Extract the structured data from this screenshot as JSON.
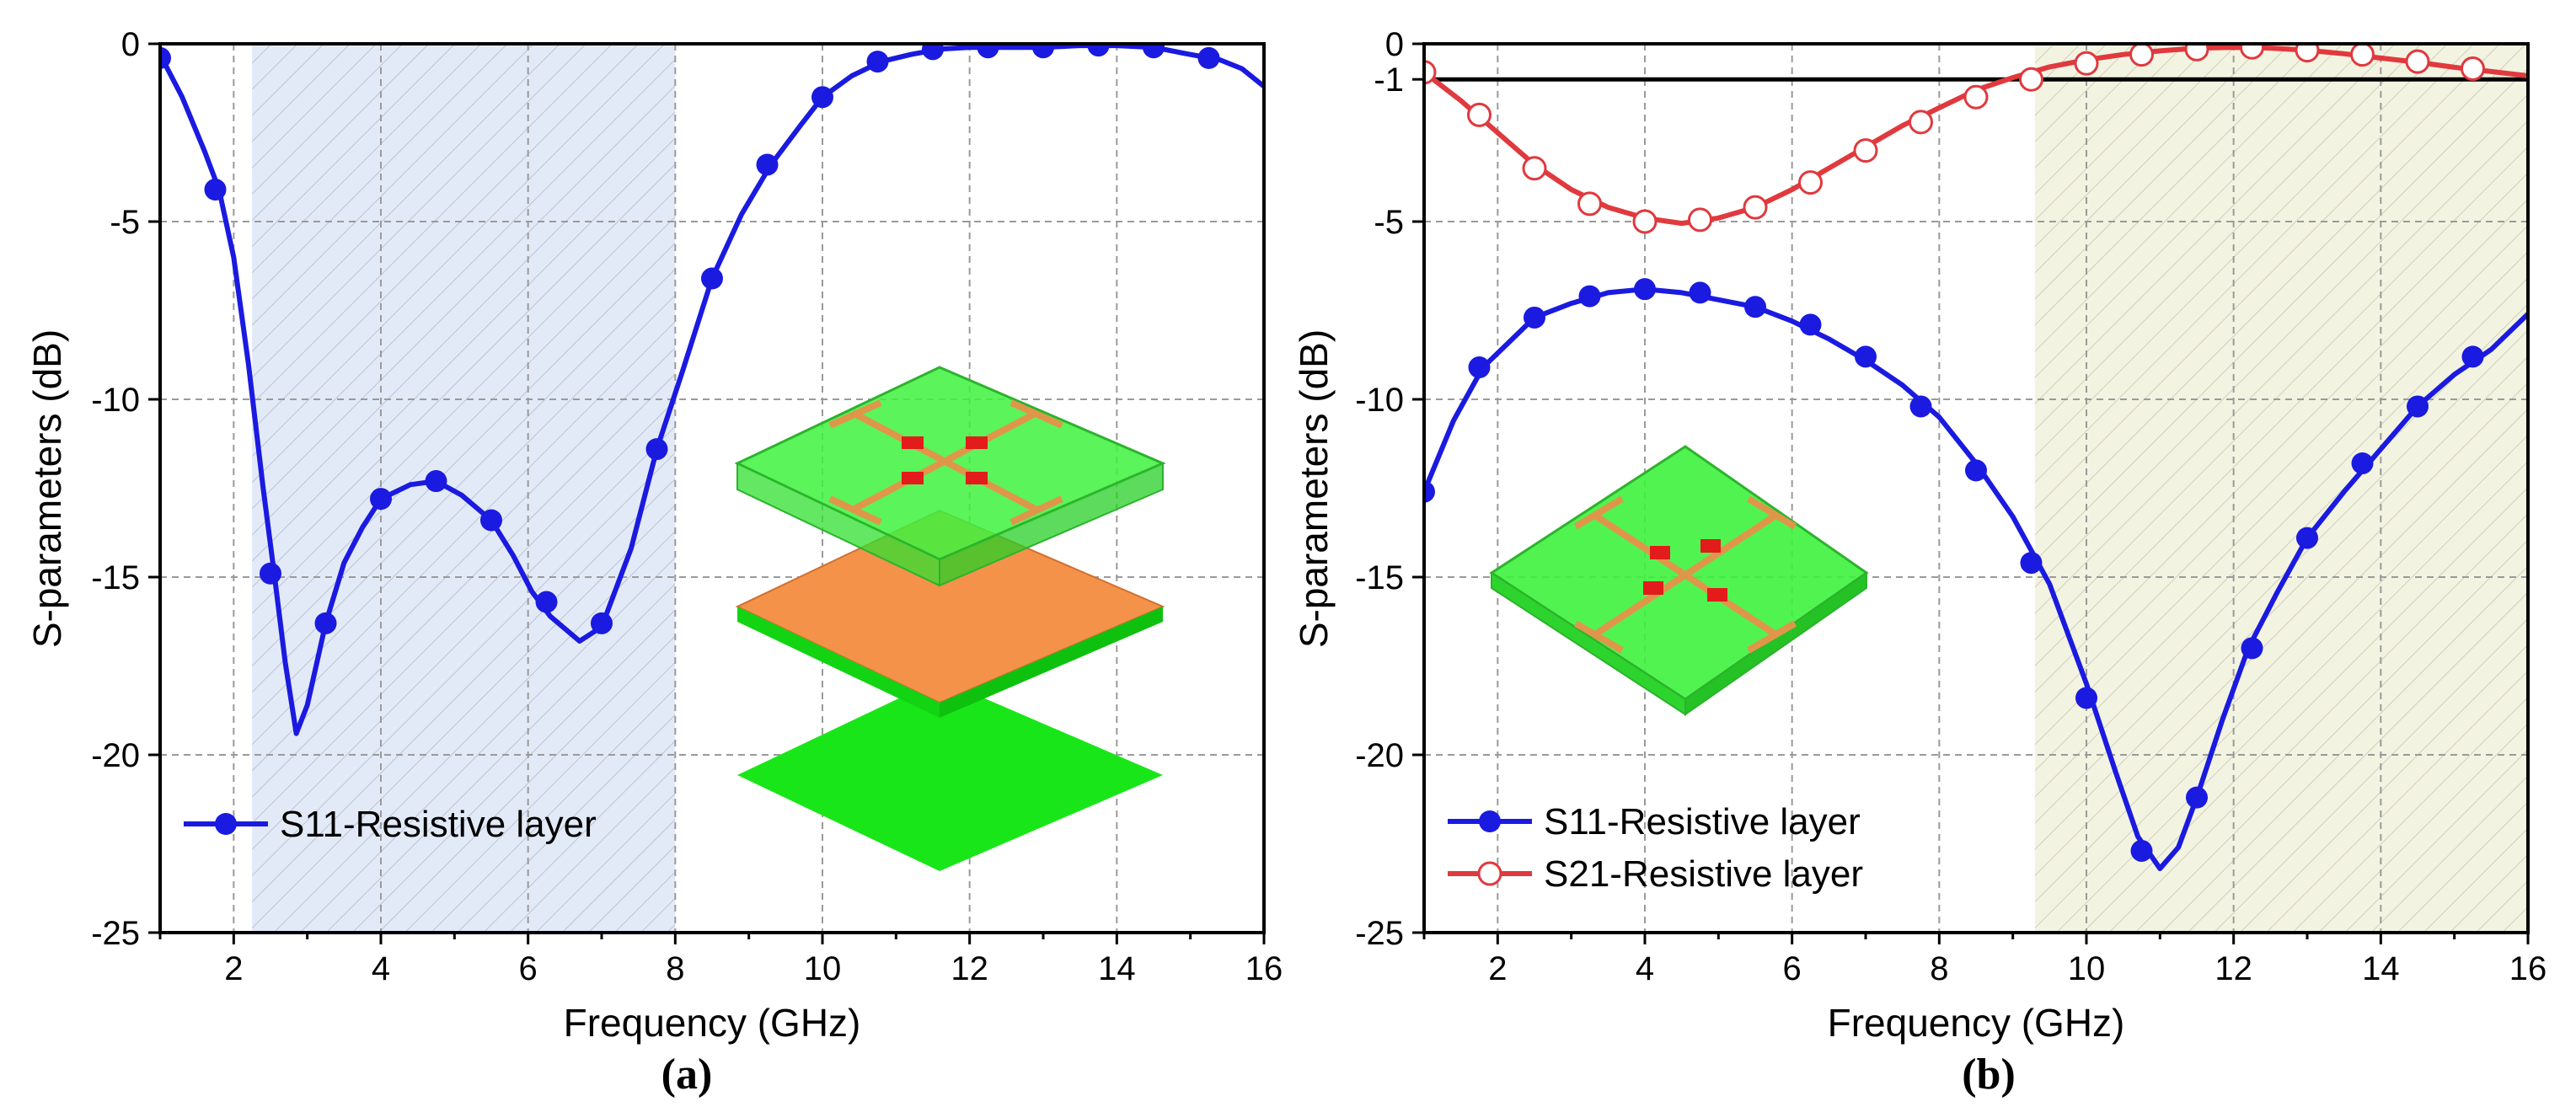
{
  "chart_data": [
    {
      "type": "line",
      "panel_label": "(a)",
      "xlabel": "Frequency (GHz)",
      "ylabel": "S-parameters (dB)",
      "xlim": [
        1,
        16
      ],
      "ylim": [
        -25,
        0
      ],
      "x_ticks": [
        "2",
        "4",
        "6",
        "8",
        "10",
        "12",
        "14",
        "16"
      ],
      "x_tick_values": [
        2,
        4,
        6,
        8,
        10,
        12,
        14,
        16
      ],
      "y_ticks": [
        "0",
        "-5",
        "-10",
        "-15",
        "-20",
        "-25"
      ],
      "y_tick_values": [
        0,
        -5,
        -10,
        -15,
        -20,
        -25
      ],
      "grid": true,
      "legend_position": "bottom-left",
      "shaded_band": {
        "x_range": [
          2.25,
          8.0
        ],
        "color": "#dde6f6",
        "hatch": "diagonal"
      },
      "inset": "exploded view: patterned FSS top layer above copper ground plane",
      "series": [
        {
          "name": "S11-Resistive layer",
          "color": "#1a1ae0",
          "marker": "filled-circle",
          "curve": [
            [
              1.0,
              -0.3
            ],
            [
              1.3,
              -1.5
            ],
            [
              1.6,
              -3.0
            ],
            [
              1.8,
              -4.1
            ],
            [
              2.0,
              -6.0
            ],
            [
              2.2,
              -9.0
            ],
            [
              2.4,
              -12.5
            ],
            [
              2.55,
              -14.9
            ],
            [
              2.7,
              -17.4
            ],
            [
              2.85,
              -19.4
            ],
            [
              3.0,
              -18.6
            ],
            [
              3.25,
              -16.3
            ],
            [
              3.5,
              -14.6
            ],
            [
              3.75,
              -13.6
            ],
            [
              4.0,
              -12.8
            ],
            [
              4.4,
              -12.4
            ],
            [
              4.75,
              -12.3
            ],
            [
              5.1,
              -12.7
            ],
            [
              5.5,
              -13.4
            ],
            [
              5.8,
              -14.4
            ],
            [
              6.05,
              -15.4
            ],
            [
              6.3,
              -16.1
            ],
            [
              6.7,
              -16.8
            ],
            [
              7.0,
              -16.4
            ],
            [
              7.4,
              -14.2
            ],
            [
              7.75,
              -11.4
            ],
            [
              8.1,
              -9.2
            ],
            [
              8.5,
              -6.6
            ],
            [
              8.9,
              -4.8
            ],
            [
              9.3,
              -3.4
            ],
            [
              9.7,
              -2.3
            ],
            [
              10.0,
              -1.5
            ],
            [
              10.4,
              -0.9
            ],
            [
              10.8,
              -0.5
            ],
            [
              11.2,
              -0.3
            ],
            [
              11.6,
              -0.15
            ],
            [
              12.0,
              -0.1
            ],
            [
              12.5,
              -0.1
            ],
            [
              13.0,
              -0.1
            ],
            [
              13.5,
              -0.05
            ],
            [
              14.0,
              -0.05
            ],
            [
              14.5,
              -0.1
            ],
            [
              15.0,
              -0.3
            ],
            [
              15.4,
              -0.45
            ],
            [
              15.7,
              -0.7
            ],
            [
              16.0,
              -1.2
            ]
          ],
          "markers_x": [
            1.0,
            1.75,
            2.5,
            3.25,
            4.0,
            4.75,
            5.5,
            6.25,
            7.0,
            7.75,
            8.5,
            9.25,
            10.0,
            10.75,
            11.5,
            12.25,
            13.0,
            13.75,
            14.5,
            15.25
          ],
          "markers_y": [
            -0.4,
            -4.1,
            -14.9,
            -16.3,
            -12.8,
            -12.3,
            -13.4,
            -15.7,
            -16.3,
            -11.4,
            -6.6,
            -3.4,
            -1.5,
            -0.5,
            -0.15,
            -0.1,
            -0.1,
            -0.05,
            -0.1,
            -0.4
          ]
        }
      ]
    },
    {
      "type": "line",
      "panel_label": "(b)",
      "xlabel": "Frequency (GHz)",
      "ylabel": "S-parameters (dB)",
      "xlim": [
        1,
        16
      ],
      "ylim": [
        -25,
        0
      ],
      "x_ticks": [
        "2",
        "4",
        "6",
        "8",
        "10",
        "12",
        "14",
        "16"
      ],
      "x_tick_values": [
        2,
        4,
        6,
        8,
        10,
        12,
        14,
        16
      ],
      "y_ticks": [
        "0",
        "-1",
        "-5",
        "-10",
        "-15",
        "-20",
        "-25"
      ],
      "y_tick_values": [
        0,
        -1,
        -5,
        -10,
        -15,
        -20,
        -25
      ],
      "grid": true,
      "legend_position": "bottom-left",
      "reference_line": {
        "y": -1,
        "color": "#000000"
      },
      "shaded_band": {
        "x_range": [
          9.3,
          16.0
        ],
        "color": "#f2f2e0",
        "hatch": "diagonal"
      },
      "inset": "isometric view: patterned FSS resistive layer",
      "series": [
        {
          "name": "S11-Resistive layer",
          "color": "#1a1ae0",
          "marker": "filled-circle",
          "curve": [
            [
              1.0,
              -12.6
            ],
            [
              1.4,
              -10.6
            ],
            [
              1.8,
              -9.1
            ],
            [
              2.2,
              -8.3
            ],
            [
              2.5,
              -7.7
            ],
            [
              3.0,
              -7.3
            ],
            [
              3.5,
              -7.0
            ],
            [
              4.0,
              -6.9
            ],
            [
              4.5,
              -7.0
            ],
            [
              5.0,
              -7.2
            ],
            [
              5.5,
              -7.4
            ],
            [
              6.0,
              -7.8
            ],
            [
              6.5,
              -8.3
            ],
            [
              7.0,
              -8.9
            ],
            [
              7.5,
              -9.6
            ],
            [
              8.0,
              -10.5
            ],
            [
              8.5,
              -11.8
            ],
            [
              9.0,
              -13.3
            ],
            [
              9.5,
              -15.2
            ],
            [
              10.0,
              -18.0
            ],
            [
              10.4,
              -20.5
            ],
            [
              10.7,
              -22.3
            ],
            [
              11.0,
              -23.2
            ],
            [
              11.25,
              -22.6
            ],
            [
              11.5,
              -21.2
            ],
            [
              11.85,
              -19.0
            ],
            [
              12.2,
              -17.0
            ],
            [
              12.6,
              -15.4
            ],
            [
              13.0,
              -13.9
            ],
            [
              13.5,
              -12.6
            ],
            [
              14.0,
              -11.4
            ],
            [
              14.5,
              -10.2
            ],
            [
              15.0,
              -9.3
            ],
            [
              15.5,
              -8.6
            ],
            [
              16.0,
              -7.6
            ]
          ],
          "markers_x": [
            1.0,
            1.75,
            2.5,
            3.25,
            4.0,
            4.75,
            5.5,
            6.25,
            7.0,
            7.75,
            8.5,
            9.25,
            10.0,
            10.75,
            11.5,
            12.25,
            13.0,
            13.75,
            14.5,
            15.25
          ],
          "markers_y": [
            -12.6,
            -9.1,
            -7.7,
            -7.1,
            -6.9,
            -7.0,
            -7.4,
            -7.9,
            -8.8,
            -10.2,
            -12.0,
            -14.6,
            -18.4,
            -22.7,
            -21.2,
            -17.0,
            -13.9,
            -11.8,
            -10.2,
            -8.8
          ]
        },
        {
          "name": "S21-Resistive layer",
          "color": "#e0393e",
          "marker": "open-circle",
          "curve": [
            [
              1.0,
              -0.8
            ],
            [
              1.5,
              -1.6
            ],
            [
              2.0,
              -2.5
            ],
            [
              2.5,
              -3.4
            ],
            [
              3.0,
              -4.1
            ],
            [
              3.5,
              -4.6
            ],
            [
              4.0,
              -4.9
            ],
            [
              4.5,
              -5.05
            ],
            [
              5.0,
              -4.9
            ],
            [
              5.5,
              -4.6
            ],
            [
              6.0,
              -4.1
            ],
            [
              6.5,
              -3.5
            ],
            [
              7.0,
              -2.9
            ],
            [
              7.5,
              -2.3
            ],
            [
              8.0,
              -1.8
            ],
            [
              8.5,
              -1.3
            ],
            [
              9.0,
              -0.95
            ],
            [
              9.5,
              -0.65
            ],
            [
              10.0,
              -0.45
            ],
            [
              10.5,
              -0.3
            ],
            [
              11.0,
              -0.2
            ],
            [
              11.5,
              -0.12
            ],
            [
              12.0,
              -0.1
            ],
            [
              12.5,
              -0.12
            ],
            [
              13.0,
              -0.18
            ],
            [
              13.5,
              -0.28
            ],
            [
              14.0,
              -0.4
            ],
            [
              14.5,
              -0.52
            ],
            [
              15.0,
              -0.66
            ],
            [
              15.5,
              -0.78
            ],
            [
              16.0,
              -0.9
            ]
          ],
          "markers_x": [
            1.0,
            1.75,
            2.5,
            3.25,
            4.0,
            4.75,
            5.5,
            6.25,
            7.0,
            7.75,
            8.5,
            9.25,
            10.0,
            10.75,
            11.5,
            12.25,
            13.0,
            13.75,
            14.5,
            15.25
          ],
          "markers_y": [
            -0.8,
            -2.0,
            -3.5,
            -4.5,
            -5.0,
            -4.95,
            -4.6,
            -3.9,
            -3.0,
            -2.2,
            -1.5,
            -1.0,
            -0.55,
            -0.3,
            -0.15,
            -0.1,
            -0.18,
            -0.3,
            -0.5,
            -0.7
          ]
        }
      ]
    }
  ]
}
